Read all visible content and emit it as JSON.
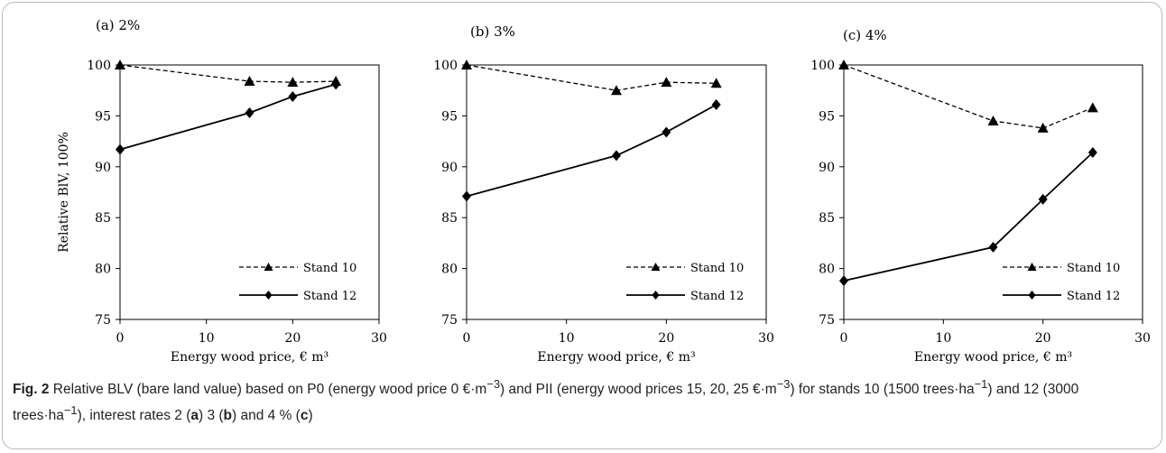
{
  "caption": {
    "label": "Fig. 2",
    "text": " Relative BLV (bare land value) based on P0 (energy wood price 0 €·m",
    "sup1": "−3",
    "text2": ") and PII (energy wood prices 15, 20, 25 €·m",
    "sup2": "−3",
    "text3": ") for stands 10 (1500 trees·ha",
    "sup3": "−1",
    "text4": ") and 12 (3000 trees·ha",
    "sup4": "−1",
    "text5": "), interest rates 2 (",
    "a": "a",
    "text6": ") 3 (",
    "b": "b",
    "text7": ") and 4 % (",
    "c": "c",
    "text8": ")"
  },
  "chart_data": [
    {
      "type": "line",
      "title": "(a) 2%",
      "xlabel": "Energy wood price,  € m³",
      "ylabel": "Relative BlV, 100%",
      "xlim": [
        0,
        30
      ],
      "ylim": [
        75,
        100
      ],
      "xticks": [
        "0",
        "10",
        "20",
        "30"
      ],
      "yticks": [
        "75",
        "80",
        "85",
        "90",
        "95",
        "100"
      ],
      "legend_position": "bottom-right",
      "series": [
        {
          "name": "Stand 10",
          "style": "dashed",
          "marker": "triangle",
          "x": [
            0,
            15,
            20,
            25
          ],
          "y": [
            100,
            98.4,
            98.3,
            98.4
          ]
        },
        {
          "name": "Stand 12",
          "style": "solid",
          "marker": "diamond",
          "x": [
            0,
            15,
            20,
            25
          ],
          "y": [
            91.7,
            95.3,
            96.9,
            98.1
          ]
        }
      ]
    },
    {
      "type": "line",
      "title": "(b) 3%",
      "xlabel": "Energy wood price,  € m³",
      "ylabel": "",
      "xlim": [
        0,
        30
      ],
      "ylim": [
        75,
        100
      ],
      "xticks": [
        "0",
        "10",
        "20",
        "30"
      ],
      "yticks": [
        "75",
        "80",
        "85",
        "90",
        "95",
        "100"
      ],
      "legend_position": "bottom-right",
      "series": [
        {
          "name": "Stand 10",
          "style": "dashed",
          "marker": "triangle",
          "x": [
            0,
            15,
            20,
            25
          ],
          "y": [
            100,
            97.5,
            98.3,
            98.2
          ]
        },
        {
          "name": "Stand 12",
          "style": "solid",
          "marker": "diamond",
          "x": [
            0,
            15,
            20,
            25
          ],
          "y": [
            87.1,
            91.1,
            93.4,
            96.1
          ]
        }
      ]
    },
    {
      "type": "line",
      "title": "(c) 4%",
      "xlabel": "Energy wood price,  € m³",
      "ylabel": "",
      "xlim": [
        0,
        30
      ],
      "ylim": [
        75,
        100
      ],
      "xticks": [
        "0",
        "10",
        "20",
        "30"
      ],
      "yticks": [
        "75",
        "80",
        "85",
        "90",
        "95",
        "100"
      ],
      "legend_position": "bottom-right",
      "series": [
        {
          "name": "Stand 10",
          "style": "dashed",
          "marker": "triangle",
          "x": [
            0,
            15,
            20,
            25
          ],
          "y": [
            100,
            94.5,
            93.8,
            95.8
          ]
        },
        {
          "name": "Stand 12",
          "style": "solid",
          "marker": "diamond",
          "x": [
            0,
            15,
            20,
            25
          ],
          "y": [
            78.8,
            82.1,
            86.8,
            91.4
          ]
        }
      ]
    }
  ]
}
